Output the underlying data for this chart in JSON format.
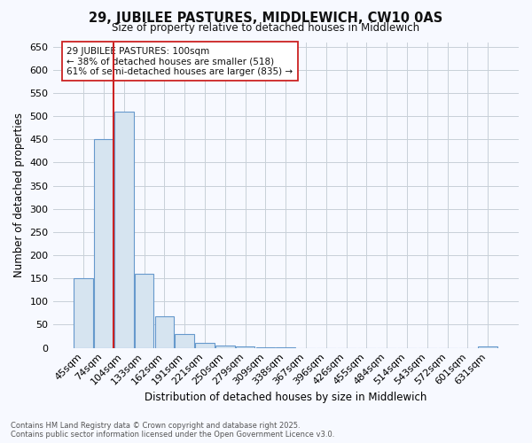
{
  "title_line1": "29, JUBILEE PASTURES, MIDDLEWICH, CW10 0AS",
  "title_line2": "Size of property relative to detached houses in Middlewich",
  "xlabel": "Distribution of detached houses by size in Middlewich",
  "ylabel": "Number of detached properties",
  "bar_labels": [
    "45sqm",
    "74sqm",
    "104sqm",
    "133sqm",
    "162sqm",
    "191sqm",
    "221sqm",
    "250sqm",
    "279sqm",
    "309sqm",
    "338sqm",
    "367sqm",
    "396sqm",
    "426sqm",
    "455sqm",
    "484sqm",
    "514sqm",
    "543sqm",
    "572sqm",
    "601sqm",
    "631sqm"
  ],
  "bar_values": [
    150,
    450,
    510,
    160,
    68,
    30,
    10,
    5,
    3,
    2,
    1,
    0,
    0,
    0,
    0,
    0,
    0,
    0,
    0,
    0,
    3
  ],
  "bar_color": "#d6e4f0",
  "bar_edge_color": "#6699cc",
  "grid_color": "#c8d0d8",
  "background_color": "#f7f9ff",
  "vline_color": "#cc2222",
  "annotation_text": "29 JUBILEE PASTURES: 100sqm\n← 38% of detached houses are smaller (518)\n61% of semi-detached houses are larger (835) →",
  "annotation_box_facecolor": "#ffffff",
  "annotation_box_edgecolor": "#cc2222",
  "ylim": [
    0,
    660
  ],
  "yticks": [
    0,
    50,
    100,
    150,
    200,
    250,
    300,
    350,
    400,
    450,
    500,
    550,
    600,
    650
  ],
  "footer_line1": "Contains HM Land Registry data © Crown copyright and database right 2025.",
  "footer_line2": "Contains public sector information licensed under the Open Government Licence v3.0."
}
